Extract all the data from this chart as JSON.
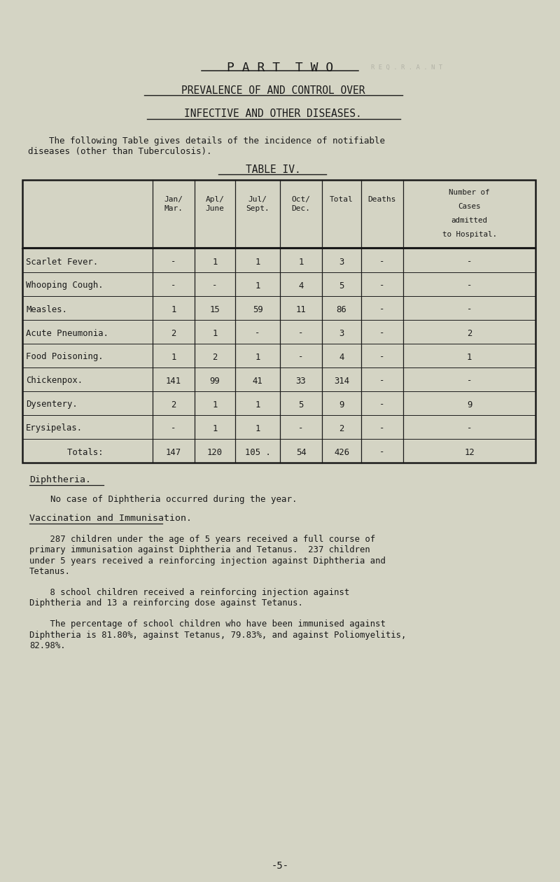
{
  "bg_color": "#d4d4c4",
  "text_color": "#1a1a1a",
  "title1": "P A R T  T W O",
  "title2": "PREVALENCE OF AND CONTROL OVER",
  "title3": "INFECTIVE AND OTHER DISEASES.",
  "intro_line1": "    The following Table gives details of the incidence of notifiable",
  "intro_line2": "diseases (other than Tuberculosis).",
  "table_title": "TABLE IV.",
  "col_headers_line1": [
    "Jan/",
    "Apl/",
    "Jul/",
    "Oct/",
    "",
    "",
    "Number of"
  ],
  "col_headers_line2": [
    "Mar.",
    "June",
    "Sept.",
    "Dec.",
    "Total",
    "Deaths",
    "Cases"
  ],
  "col_headers_line3": [
    "",
    "",
    "",
    "",
    "",
    "",
    "admitted"
  ],
  "col_headers_line4": [
    "",
    "",
    "",
    "",
    "",
    "",
    "to Hospital."
  ],
  "rows": [
    [
      "Scarlet Fever.",
      "-",
      "1",
      "1",
      "1",
      "3",
      "-",
      "-"
    ],
    [
      "Whooping Cough.",
      "-",
      "-",
      "1",
      "4",
      "5",
      "-",
      "-"
    ],
    [
      "Measles.",
      "1",
      "15",
      "59",
      "11",
      "86",
      "-",
      "-"
    ],
    [
      "Acute Pneumonia.",
      "2",
      "1",
      "-",
      "-",
      "3",
      "-",
      "2"
    ],
    [
      "Food Poisoning.",
      "1",
      "2",
      "1",
      "-",
      "4",
      "-",
      "1"
    ],
    [
      "Chickenpox.",
      "141",
      "99",
      "41",
      "33",
      "314",
      "-",
      "-"
    ],
    [
      "Dysentery.",
      "2",
      "1",
      "1",
      "5",
      "9",
      "-",
      "9"
    ],
    [
      "Erysipelas.",
      "-",
      "1",
      "1",
      "-",
      "2",
      "-",
      "-"
    ],
    [
      "        Totals:",
      "147",
      "120",
      "105 .",
      "54",
      "426",
      "-",
      "12"
    ]
  ],
  "diphtheria_heading": "Diphtheria.",
  "diphtheria_text": "    No case of Diphtheria occurred during the year.",
  "vacc_heading": "Vaccination and Immunisation.",
  "vacc_para1_lines": [
    "    287 children under the age of 5 years received a full course of",
    "primary immunisation against Diphtheria and Tetanus.  237 children",
    "under 5 years received a reinforcing injection against Diphtheria and",
    "Tetanus."
  ],
  "vacc_para2_lines": [
    "    8 school children received a reinforcing injection against",
    "Diphtheria and 13 a reinforcing dose against Tetanus."
  ],
  "vacc_para3_lines": [
    "    The percentage of school children who have been immunised against",
    "Diphtheria is 81.80%, against Tetanus, 79.83%, and against Poliomyelitis,",
    "82.98%."
  ],
  "page_num": "-5-",
  "stamp_text": "R E Q . R . A . N T"
}
